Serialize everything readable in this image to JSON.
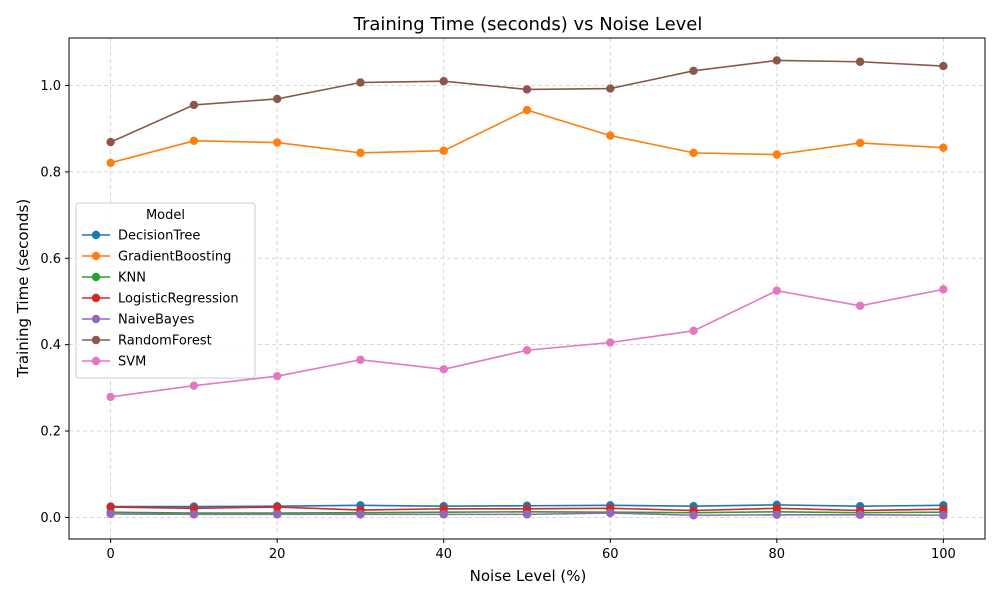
{
  "chart_data": {
    "type": "line",
    "title": "Training Time (seconds) vs Noise Level",
    "xlabel": "Noise Level (%)",
    "ylabel": "Training Time (seconds)",
    "x": [
      0,
      10,
      20,
      30,
      40,
      50,
      60,
      70,
      80,
      90,
      100
    ],
    "xlim": [
      -5,
      105
    ],
    "ylim": [
      -0.05,
      1.11
    ],
    "xticks": [
      0,
      20,
      40,
      60,
      80,
      100
    ],
    "xtick_labels": [
      "0",
      "20",
      "40",
      "60",
      "80",
      "100"
    ],
    "yticks": [
      0.0,
      0.2,
      0.4,
      0.6,
      0.8,
      1.0
    ],
    "ytick_labels": [
      "0.0",
      "0.2",
      "0.4",
      "0.6",
      "0.8",
      "1.0"
    ],
    "grid": true,
    "legend": {
      "title": "Model",
      "placement": "center-left"
    },
    "series": [
      {
        "name": "DecisionTree",
        "color": "#1f77b4",
        "values": [
          0.025,
          0.025,
          0.026,
          0.028,
          0.026,
          0.027,
          0.028,
          0.026,
          0.029,
          0.026,
          0.028
        ]
      },
      {
        "name": "GradientBoosting",
        "color": "#ff7f0e",
        "values": [
          0.821,
          0.872,
          0.868,
          0.844,
          0.849,
          0.943,
          0.884,
          0.844,
          0.84,
          0.867,
          0.856
        ]
      },
      {
        "name": "KNN",
        "color": "#2ca02c",
        "values": [
          0.012,
          0.01,
          0.01,
          0.011,
          0.012,
          0.013,
          0.012,
          0.011,
          0.013,
          0.011,
          0.012
        ]
      },
      {
        "name": "LogisticRegression",
        "color": "#d62728",
        "values": [
          0.024,
          0.021,
          0.024,
          0.017,
          0.02,
          0.02,
          0.021,
          0.016,
          0.021,
          0.016,
          0.019
        ]
      },
      {
        "name": "NaiveBayes",
        "color": "#9467bd",
        "values": [
          0.008,
          0.007,
          0.007,
          0.007,
          0.007,
          0.007,
          0.01,
          0.005,
          0.006,
          0.006,
          0.005
        ]
      },
      {
        "name": "RandomForest",
        "color": "#8c564b",
        "values": [
          0.869,
          0.955,
          0.969,
          1.007,
          1.01,
          0.991,
          0.993,
          1.034,
          1.058,
          1.055,
          1.045
        ]
      },
      {
        "name": "SVM",
        "color": "#e377c2",
        "values": [
          0.279,
          0.305,
          0.327,
          0.365,
          0.343,
          0.387,
          0.405,
          0.432,
          0.525,
          0.49,
          0.528
        ]
      }
    ]
  }
}
